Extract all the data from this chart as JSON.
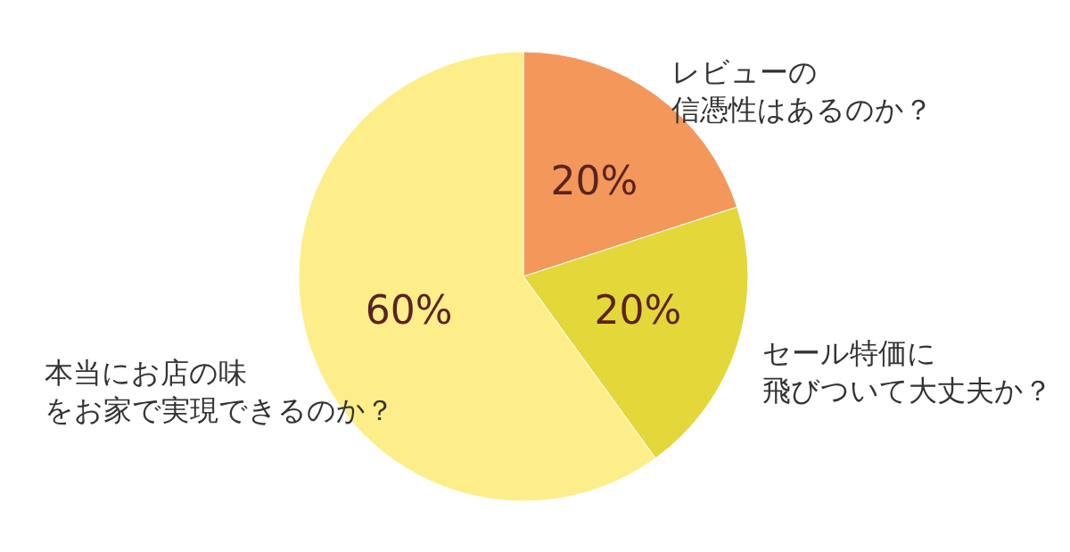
{
  "chart_data": {
    "type": "pie",
    "categories": [
      "レビューの信憑性はあるのか？",
      "セール特価に飛びついて大丈夫か？",
      "本当にお店の味をお家で実現できるのか？"
    ],
    "values": [
      20,
      20,
      60
    ],
    "value_labels": [
      "20%",
      "20%",
      "60%"
    ],
    "colors": [
      "#f4975a",
      "#e3d73a",
      "#fdee8a"
    ]
  }
}
